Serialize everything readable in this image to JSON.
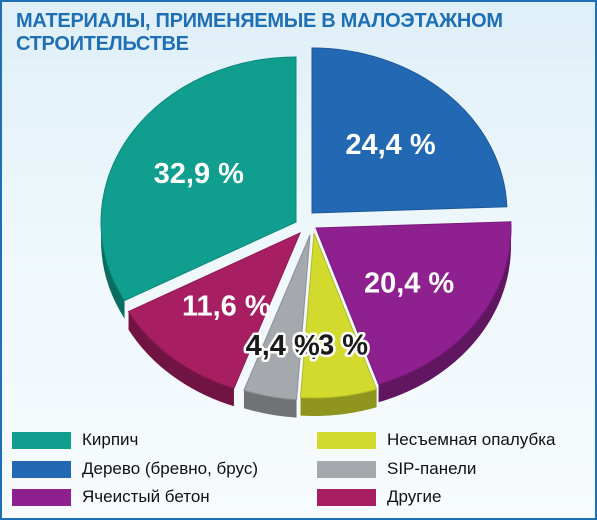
{
  "title_line1": "МАТЕРИАЛЫ, ПРИМЕНЯЕМЫЕ В МАЛОЭТАЖНОМ",
  "title_line2": "СТРОИТЕЛЬСТВЕ",
  "chart_data": {
    "type": "pie",
    "title": "МАТЕРИАЛЫ, ПРИМЕНЯЕМЫЕ В МАЛОЭТАЖНОМ СТРОИТЕЛЬСТВЕ",
    "unit": "%",
    "legend": "bottom",
    "style": "3d-exploded",
    "slices": [
      {
        "name": "Дерево (бревно, брус)",
        "value": 24.4,
        "label": "24,4 %",
        "color": "#2268b3",
        "label_style": "light"
      },
      {
        "name": "Ячеистый бетон",
        "value": 20.4,
        "label": "20,4 %",
        "color": "#8e2090",
        "label_style": "light"
      },
      {
        "name": "Несъемная опалубка",
        "value": 6.3,
        "label": "6,3 %",
        "color": "#d3da2e",
        "label_style": "dark"
      },
      {
        "name": "SIP-панели",
        "value": 4.4,
        "label": "4,4 %",
        "color": "#a5a8ad",
        "label_style": "dark"
      },
      {
        "name": "Другие",
        "value": 11.6,
        "label": "11,6 %",
        "color": "#a81e63",
        "label_style": "light"
      },
      {
        "name": "Кирпич",
        "value": 32.9,
        "label": "32,9 %",
        "color": "#109f8e",
        "label_style": "light"
      }
    ]
  },
  "legend": {
    "items": [
      {
        "label": "Кирпич",
        "color": "#109f8e"
      },
      {
        "label": "Дерево (бревно, брус)",
        "color": "#2268b3"
      },
      {
        "label": "Ячеистый бетон",
        "color": "#8e2090"
      },
      {
        "label": "Несъемная опалубка",
        "color": "#d3da2e"
      },
      {
        "label": "SIP-панели",
        "color": "#a5a8ad"
      },
      {
        "label": "Другие",
        "color": "#a81e63"
      }
    ]
  }
}
